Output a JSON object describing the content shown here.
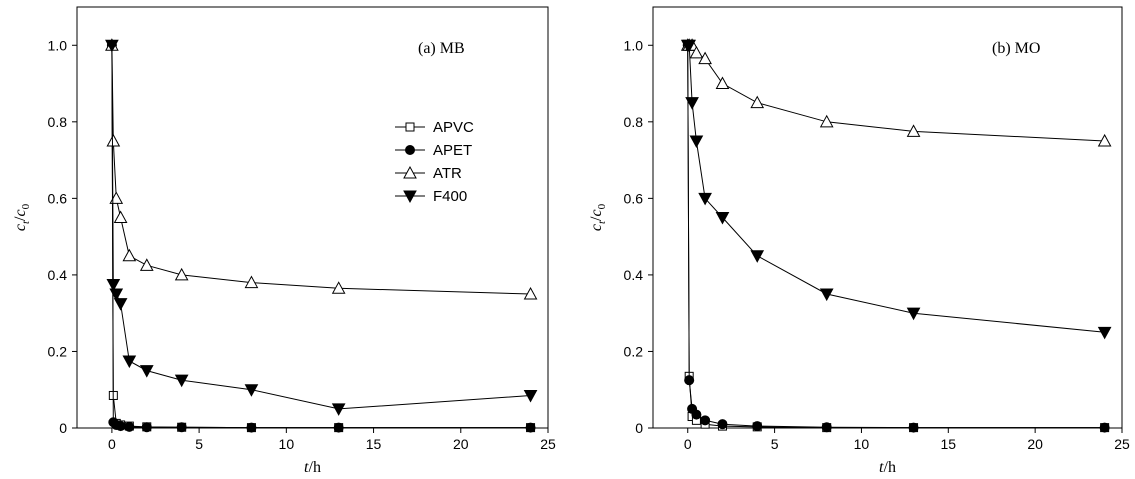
{
  "chart_data": [
    {
      "type": "line",
      "panel_label": "(a)  MB",
      "xlabel_italic": "t",
      "xlabel_unit": "/h",
      "ylabel_c": "c",
      "ylabel_sub_t": "t",
      "ylabel_slash": "/",
      "ylabel_sub_0": "0",
      "xlim": [
        -2,
        25
      ],
      "ylim": [
        0,
        1.1
      ],
      "xticks": [
        0,
        5,
        10,
        15,
        20,
        25
      ],
      "yticks": [
        0,
        0.2,
        0.4,
        0.6,
        0.8,
        1.0
      ],
      "ytick_labels": [
        "0",
        "0.2",
        "0.4",
        "0.6",
        "0.8",
        "1.0"
      ],
      "legend": {
        "visible": true,
        "position": "upper-middle"
      },
      "series": [
        {
          "name": "APVC",
          "marker": "square-open",
          "x": [
            0,
            0.083,
            0.25,
            0.5,
            1,
            2,
            4,
            8,
            13,
            24
          ],
          "y": [
            1.0,
            0.085,
            0.012,
            0.008,
            0.005,
            0.003,
            0.002,
            0.001,
            0.001,
            0.001
          ]
        },
        {
          "name": "APET",
          "marker": "circle-filled",
          "x": [
            0,
            0.083,
            0.25,
            0.5,
            1,
            2,
            4,
            8,
            13,
            24
          ],
          "y": [
            1.0,
            0.015,
            0.008,
            0.005,
            0.003,
            0.002,
            0.002,
            0.001,
            0.001,
            0.001
          ]
        },
        {
          "name": "ATR",
          "marker": "triangle-up-open",
          "x": [
            0,
            0.083,
            0.25,
            0.5,
            1,
            2,
            4,
            8,
            13,
            24
          ],
          "y": [
            1.0,
            0.75,
            0.6,
            0.55,
            0.45,
            0.425,
            0.4,
            0.38,
            0.365,
            0.35
          ]
        },
        {
          "name": "F400",
          "marker": "triangle-down-filled",
          "x": [
            0,
            0.083,
            0.25,
            0.5,
            1,
            2,
            4,
            8,
            13,
            24
          ],
          "y": [
            1.0,
            0.375,
            0.35,
            0.325,
            0.175,
            0.15,
            0.125,
            0.1,
            0.05,
            0.085
          ]
        }
      ]
    },
    {
      "type": "line",
      "panel_label": "(b)  MO",
      "xlabel_italic": "t",
      "xlabel_unit": "/h",
      "ylabel_c": "c",
      "ylabel_sub_t": "t",
      "ylabel_slash": "/",
      "ylabel_sub_0": "0",
      "xlim": [
        -2,
        25
      ],
      "ylim": [
        0,
        1.1
      ],
      "xticks": [
        0,
        5,
        10,
        15,
        20,
        25
      ],
      "yticks": [
        0,
        0.2,
        0.4,
        0.6,
        0.8,
        1.0
      ],
      "ytick_labels": [
        "0",
        "0.2",
        "0.4",
        "0.6",
        "0.8",
        "1.0"
      ],
      "legend": {
        "visible": false
      },
      "series": [
        {
          "name": "APVC",
          "marker": "square-open",
          "x": [
            0,
            0.083,
            0.25,
            0.5,
            1,
            2,
            4,
            8,
            13,
            24
          ],
          "y": [
            1.0,
            0.135,
            0.03,
            0.02,
            0.01,
            0.005,
            0.003,
            0.001,
            0.001,
            0.001
          ]
        },
        {
          "name": "APET",
          "marker": "circle-filled",
          "x": [
            0,
            0.083,
            0.25,
            0.5,
            1,
            2,
            4,
            8,
            13,
            24
          ],
          "y": [
            1.0,
            0.125,
            0.05,
            0.035,
            0.02,
            0.01,
            0.005,
            0.002,
            0.001,
            0.001
          ]
        },
        {
          "name": "ATR",
          "marker": "triangle-up-open",
          "x": [
            0,
            0.083,
            0.25,
            0.5,
            1,
            2,
            4,
            8,
            13,
            24
          ],
          "y": [
            1.0,
            1.0,
            1.0,
            0.98,
            0.965,
            0.9,
            0.85,
            0.8,
            0.775,
            0.75
          ]
        },
        {
          "name": "F400",
          "marker": "triangle-down-filled",
          "x": [
            0,
            0.083,
            0.25,
            0.5,
            1,
            2,
            4,
            8,
            13,
            24
          ],
          "y": [
            1.0,
            1.0,
            0.85,
            0.75,
            0.6,
            0.55,
            0.45,
            0.35,
            0.3,
            0.25
          ]
        }
      ]
    }
  ]
}
